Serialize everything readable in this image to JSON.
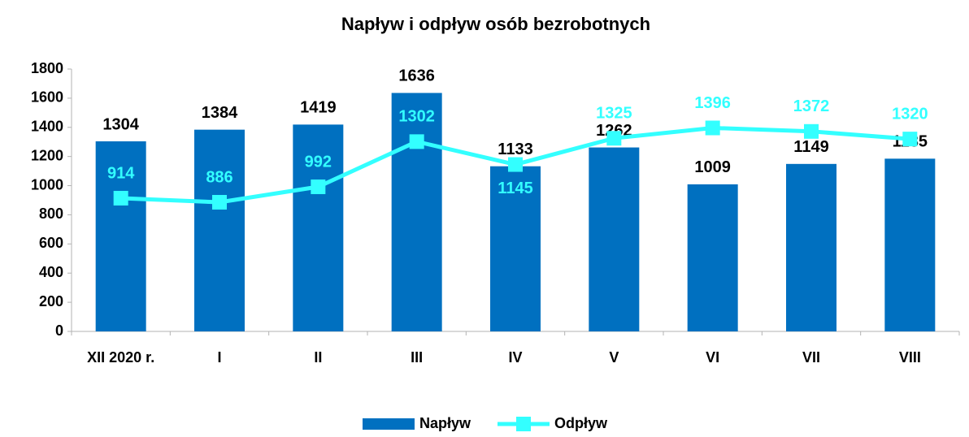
{
  "chart_data": {
    "type": "bar_line",
    "title": "Napływ i odpływ osób bezrobotnych",
    "categories": [
      "XII 2020 r.",
      "I",
      "II",
      "III",
      "IV",
      "V",
      "VI",
      "VII",
      "VIII"
    ],
    "series": [
      {
        "name": "Napływ",
        "type": "bar",
        "color": "#0070c0",
        "values": [
          1304,
          1384,
          1419,
          1636,
          1133,
          1262,
          1009,
          1149,
          1185
        ]
      },
      {
        "name": "Odpływ",
        "type": "line",
        "color": "#33ffff",
        "values": [
          914,
          886,
          992,
          1302,
          1145,
          1325,
          1396,
          1372,
          1320
        ]
      }
    ],
    "ylim": [
      0,
      1800
    ],
    "yticks": [
      0,
      200,
      400,
      600,
      800,
      1000,
      1200,
      1400,
      1600,
      1800
    ],
    "legend": "bottom"
  }
}
